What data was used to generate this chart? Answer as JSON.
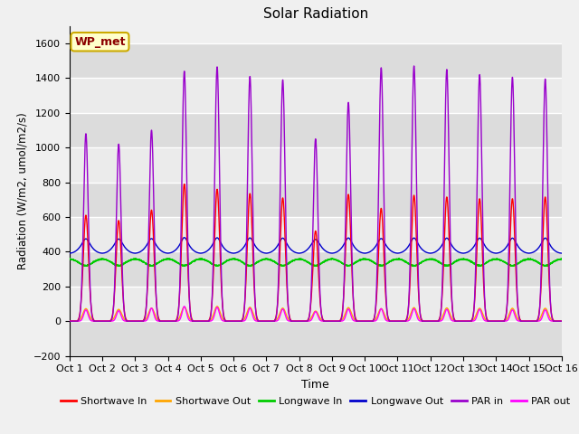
{
  "title": "Solar Radiation",
  "xlabel": "Time",
  "ylabel": "Radiation (W/m2, umol/m2/s)",
  "ylim": [
    -200,
    1700
  ],
  "annotation": "WP_met",
  "xtick_labels": [
    "Oct 1",
    "Oct 2",
    "Oct 3",
    "Oct 4",
    "Oct 5",
    "Oct 6",
    "Oct 7",
    "Oct 8",
    "Oct 9",
    "Oct 10",
    "Oct 11",
    "Oct 12",
    "Oct 13",
    "Oct 14",
    "Oct 15",
    "Oct 16"
  ],
  "legend_entries": [
    "Shortwave In",
    "Shortwave Out",
    "Longwave In",
    "Longwave Out",
    "PAR in",
    "PAR out"
  ],
  "line_colors": [
    "#ff0000",
    "#ffa500",
    "#00cc00",
    "#0000cc",
    "#9900cc",
    "#ff00ff"
  ],
  "fig_facecolor": "#f0f0f0",
  "ax_facecolor": "#f0f0f0",
  "n_days": 15,
  "pts_per_day": 288
}
